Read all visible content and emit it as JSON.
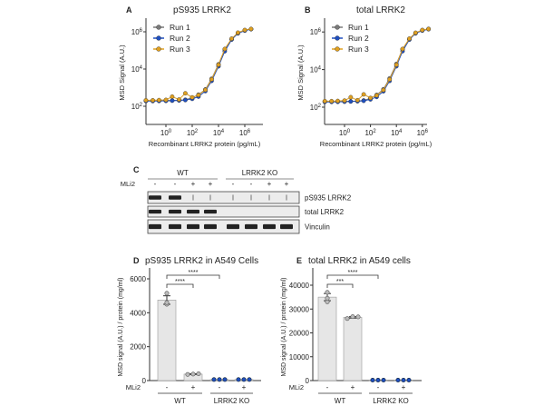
{
  "colors": {
    "run1": "#7a7a7a",
    "run2": "#1f4fbf",
    "run3": "#e0a020",
    "bar": "#e6e6e6",
    "ko_points": "#1f4fbf"
  },
  "chart_data": [
    {
      "panel": "A",
      "type": "line",
      "title": "pS935 LRRK2",
      "xlabel": "Recombinant LRRK2 protein (pg/mL)",
      "ylabel": "MSD Signal (A.U.)",
      "xscale": "log",
      "yscale": "log",
      "xticks": [
        "10^0",
        "10^2",
        "10^4",
        "10^6"
      ],
      "yticks": [
        "10^2",
        "10^4",
        "10^6"
      ],
      "legend": "top-left",
      "x": [
        0.03,
        0.1,
        0.3,
        1,
        3,
        10,
        30,
        100,
        300,
        1000,
        3000,
        10000,
        30000,
        100000,
        300000,
        1000000,
        3000000
      ],
      "series": [
        {
          "name": "Run 1",
          "values": [
            200,
            200,
            200,
            201,
            204,
            210,
            224,
            290,
            420,
            800,
            3000,
            18000,
            110000,
            410000,
            850000,
            1200000,
            1400000
          ]
        },
        {
          "name": "Run 2",
          "values": [
            190,
            190,
            192,
            195,
            200,
            205,
            215,
            250,
            330,
            650,
            2300,
            14000,
            90000,
            380000,
            820000,
            1150000,
            1380000
          ]
        },
        {
          "name": "Run 3",
          "values": [
            210,
            210,
            215,
            220,
            330,
            230,
            500,
            300,
            400,
            760,
            2800,
            17000,
            120000,
            430000,
            900000,
            1250000,
            1420000
          ]
        }
      ]
    },
    {
      "panel": "B",
      "type": "line",
      "title": "total LRRK2",
      "xlabel": "Recombinant LRRK2 protein (pg/mL)",
      "ylabel": "MSD Signal (A.U.)",
      "xscale": "log",
      "yscale": "log",
      "xticks": [
        "10^0",
        "10^2",
        "10^4",
        "10^6"
      ],
      "yticks": [
        "10^2",
        "10^4",
        "10^6"
      ],
      "legend": "top-left",
      "x": [
        0.03,
        0.1,
        0.3,
        1,
        3,
        10,
        30,
        100,
        300,
        1000,
        3000,
        10000,
        30000,
        100000,
        300000,
        1000000,
        3000000
      ],
      "series": [
        {
          "name": "Run 1",
          "values": [
            200,
            200,
            200,
            202,
            205,
            212,
            228,
            300,
            450,
            900,
            3400,
            20000,
            120000,
            430000,
            880000,
            1250000,
            1450000
          ]
        },
        {
          "name": "Run 2",
          "values": [
            190,
            190,
            192,
            196,
            200,
            206,
            218,
            260,
            350,
            700,
            2500,
            15000,
            95000,
            390000,
            840000,
            1180000,
            1400000
          ]
        },
        {
          "name": "Run 3",
          "values": [
            210,
            210,
            215,
            225,
            340,
            235,
            480,
            310,
            420,
            820,
            3000,
            18000,
            125000,
            440000,
            910000,
            1270000,
            1440000
          ]
        }
      ]
    },
    {
      "panel": "D",
      "type": "bar",
      "title": "pS935 LRRK2 in A549 Cells",
      "ylabel": "MSD signal (A.U.) / protein (mg/ml)",
      "ylim": [
        0,
        6000
      ],
      "yticks": [
        0,
        2000,
        4000,
        6000
      ],
      "treatment_label": "MLi2",
      "categories": [
        "-",
        "+",
        "-",
        "+"
      ],
      "groups": [
        "WT",
        "LRRK2 KO"
      ],
      "values": [
        4750,
        380,
        60,
        60
      ],
      "errors": [
        250,
        20,
        5,
        5
      ],
      "points": [
        [
          4500,
          4600,
          5150
        ],
        [
          360,
          380,
          400
        ],
        [
          60,
          60,
          60
        ],
        [
          60,
          60,
          60
        ]
      ],
      "significance": [
        {
          "from": 0,
          "to": 1,
          "label": "****"
        },
        {
          "from": 0,
          "to": 2,
          "label": "****"
        }
      ]
    },
    {
      "panel": "E",
      "type": "bar",
      "title": "total LRRK2 in A549 cells",
      "ylabel": "MSD signal (A.U.) / protein (mg/ml)",
      "ylim": [
        0,
        45000
      ],
      "yticks": [
        0,
        10000,
        20000,
        30000,
        40000
      ],
      "treatment_label": "MLi2",
      "categories": [
        "-",
        "+",
        "-",
        "+"
      ],
      "groups": [
        "WT",
        "LRRK2 KO"
      ],
      "values": [
        35000,
        26500,
        200,
        200
      ],
      "errors": [
        1500,
        300,
        20,
        20
      ],
      "points": [
        [
          33000,
          34500,
          37000
        ],
        [
          26000,
          26800,
          26700
        ],
        [
          200,
          200,
          200
        ],
        [
          200,
          200,
          200
        ]
      ],
      "significance": [
        {
          "from": 0,
          "to": 1,
          "label": "***"
        },
        {
          "from": 0,
          "to": 2,
          "label": "****"
        }
      ]
    }
  ],
  "blot": {
    "panel": "C",
    "groups": [
      "WT",
      "LRRK2 KO"
    ],
    "treatment_label": "MLi2",
    "lanes": [
      "-",
      "-",
      "+",
      "+",
      "-",
      "-",
      "+",
      "+"
    ],
    "rows": [
      {
        "label": "pS935 LRRK2",
        "intensity": [
          1,
          1,
          0.1,
          0.1,
          0.1,
          0.1,
          0.1,
          0.1
        ]
      },
      {
        "label": "total LRRK2",
        "intensity": [
          0.9,
          0.9,
          0.9,
          0.9,
          0,
          0,
          0,
          0
        ]
      },
      {
        "label": "Vinculin",
        "intensity": [
          0.9,
          0.9,
          0.9,
          0.9,
          1,
          1,
          1,
          1
        ]
      }
    ]
  }
}
